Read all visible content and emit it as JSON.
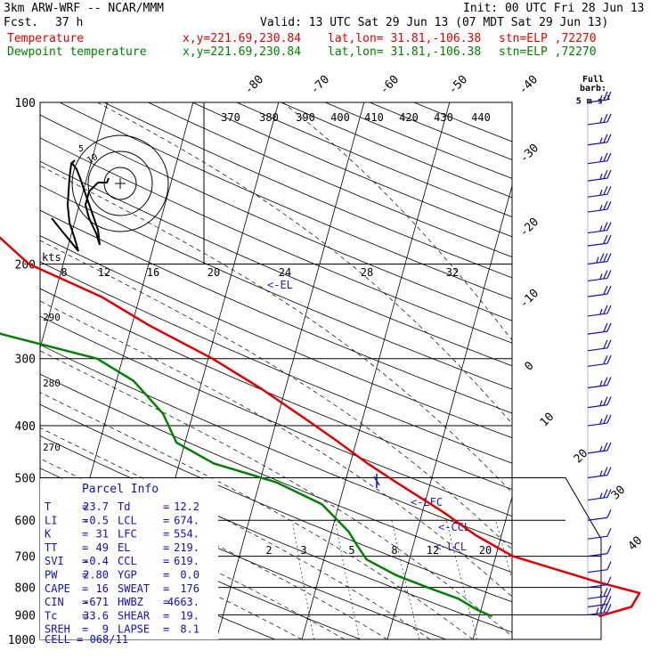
{
  "header": {
    "model": "3km ARW-WRF -- NCAR/MMM",
    "init": "Init: 00 UTC Fri 28 Jun 13",
    "fcst_label": "Fcst.",
    "fcst_value": "37 h",
    "valid": "Valid: 13 UTC Sat 29 Jun 13 (07 MDT Sat 29 Jun 13)",
    "temp_label": "Temperature",
    "dew_label": "Dewpoint temperature",
    "xy": "x,y=221.69,230.84",
    "latlon": "lat,lon= 31.81,-106.38",
    "stn": "stn=ELP ,72270"
  },
  "barb_key": {
    "line1": "Full barb:",
    "line2": "5 m s",
    "exp": "-1"
  },
  "parcel_info": {
    "title": "Parcel Info",
    "rows": [
      {
        "l1": "T",
        "v1": "23.7",
        "l2": "Td",
        "v2": "12.2"
      },
      {
        "l1": "LI",
        "v1": "-0.5",
        "l2": "LCL",
        "v2": "674."
      },
      {
        "l1": "K",
        "v1": "31",
        "l2": "LFC",
        "v2": "554."
      },
      {
        "l1": "TT",
        "v1": "49",
        "l2": "EL",
        "v2": "219."
      },
      {
        "l1": "SVI",
        "v1": "-0.4",
        "l2": "CCL",
        "v2": "619."
      },
      {
        "l1": "PW",
        "v1": "2.80",
        "l2": "YGP",
        "v2": "0.0"
      },
      {
        "l1": "CAPE",
        "v1": "16",
        "l2": "SWEAT",
        "v2": "176"
      },
      {
        "l1": "CIN",
        "v1": "-671",
        "l2": "HWBZ",
        "v2": "4663."
      },
      {
        "l1": "Tc",
        "v1": "33.6",
        "l2": "SHEAR",
        "v2": "19."
      },
      {
        "l1": "SREH",
        "v1": "9",
        "l2": "LAPSE",
        "v2": "8.1"
      }
    ],
    "cell": "CELL = 068/11"
  },
  "hodograph": {
    "units": "kts",
    "rings": [
      "5",
      "10"
    ]
  },
  "colors": {
    "temperature": "#e00000",
    "dewpoint": "#008000",
    "barbs": "#1010c0",
    "grid": "#000000"
  },
  "chart_data": {
    "type": "line",
    "title": "",
    "y_axis": {
      "label": "",
      "scale": "log",
      "ticks": [
        100,
        200,
        300,
        400,
        500,
        600,
        700,
        800,
        900,
        1000
      ]
    },
    "temperature_isotherm_ticks": [
      "-80",
      "-70",
      "-60",
      "-50",
      "-40",
      "-30",
      "-20",
      "-10",
      "0",
      "10",
      "20",
      "30",
      "40"
    ],
    "theta_e_labels": [
      "370",
      "380",
      "390",
      "400",
      "410",
      "420",
      "430",
      "440"
    ],
    "mixing_ratio_labels": [
      "2",
      "3",
      "5",
      "8",
      "12",
      "20"
    ],
    "dryadiabat_labels": [
      "290",
      "280",
      "270"
    ],
    "wetbulb_labels_200": [
      "8",
      "12",
      "16",
      "20",
      "24",
      "28",
      "32"
    ],
    "levels": {
      "el": "<-EL",
      "lfc": "<-LFC",
      "ccl": "<-CCL",
      "lcl": "<-LCL"
    },
    "series": [
      {
        "name": "Temperature",
        "points": [
          [
            906,
            24.0
          ],
          [
            870,
            27.5
          ],
          [
            820,
            28.0
          ],
          [
            780,
            22.5
          ],
          [
            700,
            12.0
          ],
          [
            640,
            7.0
          ],
          [
            580,
            2.5
          ],
          [
            510,
            -4.0
          ],
          [
            470,
            -8.0
          ],
          [
            425,
            -12.5
          ],
          [
            390,
            -16.5
          ],
          [
            340,
            -23.0
          ],
          [
            300,
            -29.5
          ],
          [
            260,
            -38.0
          ],
          [
            230,
            -44.5
          ],
          [
            200,
            -54.0
          ],
          [
            175,
            -59.0
          ],
          [
            155,
            -62.0
          ],
          [
            140,
            -64.0
          ],
          [
            127,
            -65.0
          ],
          [
            115,
            -66.5
          ],
          [
            100,
            -72.0
          ]
        ]
      },
      {
        "name": "Dewpoint temperature",
        "points": [
          [
            906,
            11.5
          ],
          [
            880,
            9.5
          ],
          [
            840,
            7.0
          ],
          [
            800,
            3.0
          ],
          [
            760,
            -1.0
          ],
          [
            710,
            -5.0
          ],
          [
            670,
            -6.5
          ],
          [
            630,
            -8.0
          ],
          [
            560,
            -12.0
          ],
          [
            510,
            -18.0
          ],
          [
            470,
            -26.0
          ],
          [
            430,
            -31.0
          ],
          [
            380,
            -33.5
          ],
          [
            330,
            -38.0
          ],
          [
            300,
            -43.0
          ],
          [
            270,
            -55.0
          ],
          [
            240,
            -62.0
          ],
          [
            215,
            -67.0
          ],
          [
            190,
            -73.0
          ],
          [
            175,
            -77.0
          ],
          [
            155,
            -80.0
          ],
          [
            140,
            -82.0
          ],
          [
            120,
            -84.0
          ],
          [
            100,
            -87.0
          ]
        ]
      }
    ],
    "wind_barbs_kts": [
      {
        "p": 900,
        "speed": 25
      },
      {
        "p": 870,
        "speed": 20
      },
      {
        "p": 840,
        "speed": 15
      },
      {
        "p": 800,
        "speed": 10
      },
      {
        "p": 750,
        "speed": 10
      },
      {
        "p": 700,
        "speed": 10
      },
      {
        "p": 650,
        "speed": 10
      },
      {
        "p": 600,
        "speed": 10
      },
      {
        "p": 550,
        "speed": 15
      },
      {
        "p": 500,
        "speed": 15
      },
      {
        "p": 450,
        "speed": 15
      },
      {
        "p": 400,
        "speed": 15
      },
      {
        "p": 370,
        "speed": 15
      },
      {
        "p": 340,
        "speed": 15
      },
      {
        "p": 310,
        "speed": 20
      },
      {
        "p": 290,
        "speed": 20
      },
      {
        "p": 270,
        "speed": 20
      },
      {
        "p": 250,
        "speed": 15
      },
      {
        "p": 230,
        "speed": 20
      },
      {
        "p": 215,
        "speed": 15
      },
      {
        "p": 200,
        "speed": 25
      },
      {
        "p": 185,
        "speed": 20
      },
      {
        "p": 175,
        "speed": 15
      },
      {
        "p": 160,
        "speed": 15
      },
      {
        "p": 150,
        "speed": 15
      },
      {
        "p": 140,
        "speed": 15
      },
      {
        "p": 130,
        "speed": 15
      },
      {
        "p": 120,
        "speed": 15
      },
      {
        "p": 110,
        "speed": 15
      },
      {
        "p": 100,
        "speed": 15
      }
    ]
  }
}
